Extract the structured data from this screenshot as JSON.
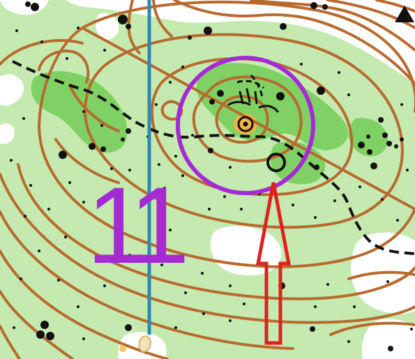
{
  "map": {
    "type": "orienteering-map",
    "colors": {
      "background": "#ffffff",
      "vegetation_light": "#c4eab0",
      "vegetation_dark": "#7fd163",
      "contour": "#b86a2e",
      "course_overprint": "#a52ad6",
      "magnetic_north_line": "#2f88b4",
      "arrow": "#e0201e",
      "path": "#111111",
      "knoll_fill": "#f2b24a"
    },
    "icons": {
      "north_triangle": "black-triangle-icon",
      "knoll": "knoll-icon",
      "boulder": "black-dot-icon",
      "small_tree": "cross-icon"
    }
  },
  "course": {
    "control_number": "11",
    "control_circle": "purple-control-circle",
    "pointer": "red-arrow-up"
  }
}
